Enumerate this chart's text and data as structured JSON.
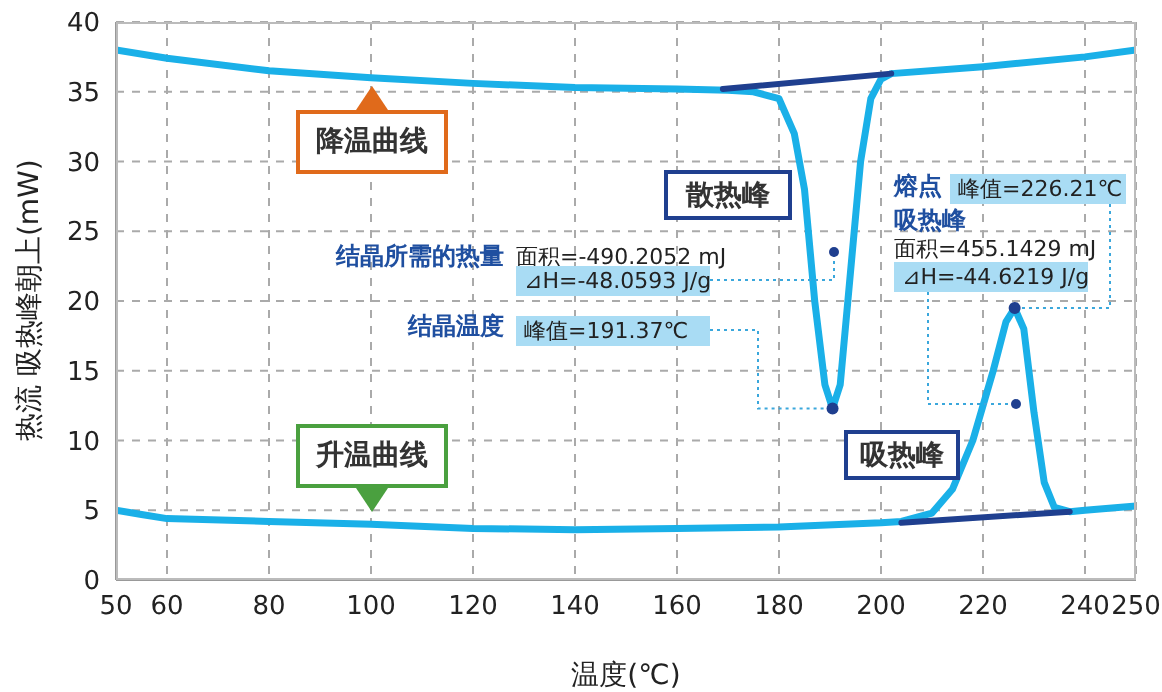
{
  "chart_data": {
    "type": "line",
    "xlabel": "温度(℃)",
    "ylabel": "热流  吸热峰朝上(mW)",
    "xlim": [
      50,
      250
    ],
    "ylim": [
      0,
      40
    ],
    "xticks": [
      50,
      60,
      80,
      100,
      120,
      140,
      160,
      180,
      200,
      220,
      240,
      250
    ],
    "yticks": [
      0,
      5,
      10,
      15,
      20,
      25,
      30,
      35,
      40
    ],
    "grid": true,
    "marker": "none",
    "line_style": "solid",
    "series": [
      {
        "color": "#1ab0e8",
        "x": [
          50,
          60,
          80,
          100,
          120,
          140,
          160,
          170,
          175,
          180,
          183,
          185,
          187,
          189,
          190.5,
          192,
          194,
          196,
          198,
          200,
          202,
          220,
          240,
          250
        ],
        "values": [
          38,
          37.4,
          36.5,
          36,
          35.6,
          35.3,
          35.2,
          35.1,
          35,
          34.5,
          32,
          28,
          20,
          14,
          12.3,
          14,
          22,
          30,
          34.5,
          35.9,
          36.3,
          36.8,
          37.5,
          38
        ]
      },
      {
        "color": "#1ab0e8",
        "x": [
          50,
          55,
          60,
          80,
          100,
          120,
          140,
          160,
          180,
          200,
          204,
          210,
          214,
          218,
          222,
          224.5,
          226.2,
          228,
          230,
          232,
          234,
          237,
          240,
          250
        ],
        "values": [
          5,
          4.7,
          4.4,
          4.2,
          4,
          3.7,
          3.6,
          3.7,
          3.8,
          4.1,
          4.2,
          4.8,
          6.5,
          10,
          15,
          18.5,
          19.5,
          18,
          12,
          7,
          5.2,
          4.9,
          5,
          5.3
        ]
      },
      {
        "color": "#1f3f8f",
        "x": [
          169,
          202
        ],
        "values": [
          35.2,
          36.3
        ]
      },
      {
        "color": "#1f3f8f",
        "x": [
          204,
          237
        ],
        "values": [
          4.1,
          4.9
        ]
      }
    ],
    "annotations": [
      "降温曲线",
      "升温曲线",
      "散热峰",
      "吸热峰",
      "结晶所需的热量",
      "面积=-490.2052 mJ",
      "⊿H=-48.0593 J/g",
      "结晶温度",
      {
        "text": "峰值=191.37℃",
        "x": 190.5,
        "y": 12.3
      },
      "熔点",
      {
        "text": "峰值=226.21℃",
        "x": 226.2,
        "y": 19.5
      },
      "吸热峰",
      "面积=455.1429 mJ",
      "⊿H=-44.6219 J/g"
    ]
  }
}
